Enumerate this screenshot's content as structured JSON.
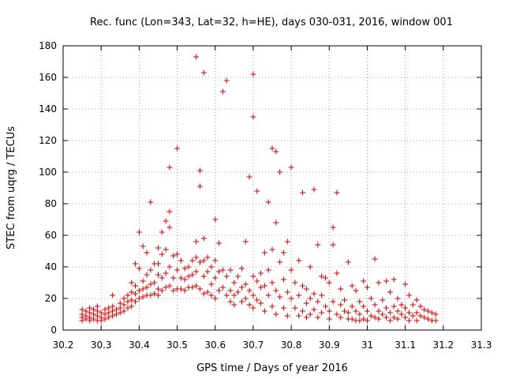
{
  "chart_data": {
    "type": "scatter",
    "title": "Rec. func (Lon=343, Lat=32, h=HE), days 030-031, 2016, window 001",
    "xlabel": "GPS time / Days of year 2016",
    "ylabel": "STEC from uqrg / TECUs",
    "xlim": [
      30.2,
      31.3
    ],
    "ylim": [
      0,
      180
    ],
    "xticks": [
      "30.2",
      "30.3",
      "30.4",
      "30.5",
      "30.6",
      "30.7",
      "30.8",
      "30.9",
      "31",
      "31.1",
      "31.2",
      "31.3"
    ],
    "yticks": [
      "0",
      "20",
      "40",
      "60",
      "80",
      "100",
      "120",
      "140",
      "160",
      "180"
    ],
    "grid": true,
    "marker": "+",
    "color": "#cc0000",
    "series": [
      {
        "name": "STEC",
        "points": [
          [
            30.25,
            13
          ],
          [
            30.25,
            10
          ],
          [
            30.25,
            8
          ],
          [
            30.25,
            6
          ],
          [
            30.26,
            12
          ],
          [
            30.26,
            9
          ],
          [
            30.26,
            7
          ],
          [
            30.27,
            14
          ],
          [
            30.27,
            11
          ],
          [
            30.27,
            8
          ],
          [
            30.27,
            6
          ],
          [
            30.28,
            13
          ],
          [
            30.28,
            10
          ],
          [
            30.28,
            7
          ],
          [
            30.29,
            15
          ],
          [
            30.29,
            12
          ],
          [
            30.29,
            9
          ],
          [
            30.29,
            6
          ],
          [
            30.3,
            11
          ],
          [
            30.3,
            8
          ],
          [
            30.3,
            6
          ],
          [
            30.31,
            13
          ],
          [
            30.31,
            10
          ],
          [
            30.31,
            7
          ],
          [
            30.32,
            14
          ],
          [
            30.32,
            11
          ],
          [
            30.32,
            8
          ],
          [
            30.33,
            22
          ],
          [
            30.33,
            15
          ],
          [
            30.33,
            12
          ],
          [
            30.33,
            9
          ],
          [
            30.34,
            13
          ],
          [
            30.34,
            10
          ],
          [
            30.35,
            17
          ],
          [
            30.35,
            14
          ],
          [
            30.35,
            11
          ],
          [
            30.36,
            20
          ],
          [
            30.36,
            16
          ],
          [
            30.36,
            12
          ],
          [
            30.37,
            22
          ],
          [
            30.37,
            18
          ],
          [
            30.37,
            14
          ],
          [
            30.38,
            30
          ],
          [
            30.38,
            24
          ],
          [
            30.38,
            19
          ],
          [
            30.38,
            15
          ],
          [
            30.39,
            42
          ],
          [
            30.39,
            28
          ],
          [
            30.39,
            23
          ],
          [
            30.39,
            18
          ],
          [
            30.4,
            62
          ],
          [
            30.4,
            39
          ],
          [
            30.4,
            25
          ],
          [
            30.4,
            20
          ],
          [
            30.41,
            53
          ],
          [
            30.41,
            31
          ],
          [
            30.41,
            26
          ],
          [
            30.41,
            21
          ],
          [
            30.42,
            49
          ],
          [
            30.42,
            35
          ],
          [
            30.42,
            27
          ],
          [
            30.42,
            22
          ],
          [
            30.43,
            81
          ],
          [
            30.43,
            38
          ],
          [
            30.43,
            29
          ],
          [
            30.43,
            22
          ],
          [
            30.44,
            42
          ],
          [
            30.44,
            30
          ],
          [
            30.44,
            23
          ],
          [
            30.45,
            52
          ],
          [
            30.45,
            42
          ],
          [
            30.45,
            35
          ],
          [
            30.45,
            26
          ],
          [
            30.45,
            22
          ],
          [
            30.46,
            62
          ],
          [
            30.46,
            48
          ],
          [
            30.46,
            33
          ],
          [
            30.46,
            25
          ],
          [
            30.47,
            69
          ],
          [
            30.47,
            51
          ],
          [
            30.47,
            36
          ],
          [
            30.47,
            27
          ],
          [
            30.48,
            103
          ],
          [
            30.48,
            75
          ],
          [
            30.48,
            65
          ],
          [
            30.48,
            40
          ],
          [
            30.48,
            28
          ],
          [
            30.49,
            47
          ],
          [
            30.49,
            33
          ],
          [
            30.49,
            25
          ],
          [
            30.5,
            115
          ],
          [
            30.5,
            48
          ],
          [
            30.5,
            38
          ],
          [
            30.5,
            26
          ],
          [
            30.51,
            44
          ],
          [
            30.51,
            33
          ],
          [
            30.51,
            26
          ],
          [
            30.52,
            39
          ],
          [
            30.52,
            32
          ],
          [
            30.52,
            25
          ],
          [
            30.53,
            40
          ],
          [
            30.53,
            34
          ],
          [
            30.53,
            27
          ],
          [
            30.54,
            44
          ],
          [
            30.54,
            35
          ],
          [
            30.54,
            27
          ],
          [
            30.55,
            173
          ],
          [
            30.55,
            56
          ],
          [
            30.55,
            46
          ],
          [
            30.55,
            37
          ],
          [
            30.55,
            28
          ],
          [
            30.56,
            101
          ],
          [
            30.56,
            91
          ],
          [
            30.56,
            43
          ],
          [
            30.56,
            26
          ],
          [
            30.57,
            163
          ],
          [
            30.57,
            58
          ],
          [
            30.57,
            44
          ],
          [
            30.57,
            34
          ],
          [
            30.57,
            23
          ],
          [
            30.58,
            46
          ],
          [
            30.58,
            37
          ],
          [
            30.58,
            24
          ],
          [
            30.59,
            40
          ],
          [
            30.59,
            29
          ],
          [
            30.59,
            22
          ],
          [
            30.6,
            70
          ],
          [
            30.6,
            44
          ],
          [
            30.6,
            33
          ],
          [
            30.6,
            20
          ],
          [
            30.61,
            55
          ],
          [
            30.61,
            37
          ],
          [
            30.61,
            25
          ],
          [
            30.62,
            151
          ],
          [
            30.62,
            38
          ],
          [
            30.62,
            27
          ],
          [
            30.63,
            158
          ],
          [
            30.63,
            34
          ],
          [
            30.63,
            22
          ],
          [
            30.64,
            38
          ],
          [
            30.64,
            25
          ],
          [
            30.64,
            18
          ],
          [
            30.65,
            30
          ],
          [
            30.65,
            22
          ],
          [
            30.65,
            16
          ],
          [
            30.66,
            34
          ],
          [
            30.66,
            24
          ],
          [
            30.67,
            39
          ],
          [
            30.67,
            27
          ],
          [
            30.67,
            18
          ],
          [
            30.68,
            56
          ],
          [
            30.68,
            29
          ],
          [
            30.68,
            20
          ],
          [
            30.69,
            97
          ],
          [
            30.69,
            25
          ],
          [
            30.69,
            16
          ],
          [
            30.7,
            162
          ],
          [
            30.7,
            135
          ],
          [
            30.7,
            34
          ],
          [
            30.7,
            22
          ],
          [
            30.7,
            14
          ],
          [
            30.71,
            88
          ],
          [
            30.71,
            31
          ],
          [
            30.71,
            19
          ],
          [
            30.72,
            36
          ],
          [
            30.72,
            27
          ],
          [
            30.72,
            17
          ],
          [
            30.73,
            49
          ],
          [
            30.73,
            28
          ],
          [
            30.73,
            12
          ],
          [
            30.74,
            81
          ],
          [
            30.74,
            38
          ],
          [
            30.74,
            22
          ],
          [
            30.75,
            115
          ],
          [
            30.75,
            51
          ],
          [
            30.75,
            30
          ],
          [
            30.75,
            15
          ],
          [
            30.76,
            113
          ],
          [
            30.76,
            68
          ],
          [
            30.76,
            25
          ],
          [
            30.76,
            10
          ],
          [
            30.77,
            100
          ],
          [
            30.77,
            43
          ],
          [
            30.77,
            21
          ],
          [
            30.78,
            49
          ],
          [
            30.78,
            32
          ],
          [
            30.78,
            14
          ],
          [
            30.79,
            56
          ],
          [
            30.79,
            24
          ],
          [
            30.79,
            9
          ],
          [
            30.8,
            103
          ],
          [
            30.8,
            38
          ],
          [
            30.8,
            20
          ],
          [
            30.81,
            30
          ],
          [
            30.81,
            14
          ],
          [
            30.82,
            44
          ],
          [
            30.82,
            22
          ],
          [
            30.82,
            9
          ],
          [
            30.83,
            87
          ],
          [
            30.83,
            28
          ],
          [
            30.83,
            12
          ],
          [
            30.84,
            26
          ],
          [
            30.84,
            17
          ],
          [
            30.84,
            8
          ],
          [
            30.85,
            40
          ],
          [
            30.85,
            20
          ],
          [
            30.85,
            10
          ],
          [
            30.86,
            89
          ],
          [
            30.86,
            23
          ],
          [
            30.86,
            13
          ],
          [
            30.87,
            54
          ],
          [
            30.87,
            18
          ],
          [
            30.87,
            8
          ],
          [
            30.88,
            34
          ],
          [
            30.88,
            22
          ],
          [
            30.88,
            11
          ],
          [
            30.89,
            33
          ],
          [
            30.89,
            15
          ],
          [
            30.9,
            30
          ],
          [
            30.9,
            12
          ],
          [
            30.9,
            7
          ],
          [
            30.91,
            65
          ],
          [
            30.91,
            54
          ],
          [
            30.91,
            18
          ],
          [
            30.92,
            87
          ],
          [
            30.92,
            36
          ],
          [
            30.92,
            10
          ],
          [
            30.93,
            26
          ],
          [
            30.93,
            16
          ],
          [
            30.93,
            8
          ],
          [
            30.94,
            19
          ],
          [
            30.94,
            12
          ],
          [
            30.95,
            43
          ],
          [
            30.95,
            11
          ],
          [
            30.95,
            7
          ],
          [
            30.96,
            28
          ],
          [
            30.96,
            15
          ],
          [
            30.96,
            7
          ],
          [
            30.97,
            25
          ],
          [
            30.97,
            12
          ],
          [
            30.97,
            6
          ],
          [
            30.98,
            18
          ],
          [
            30.98,
            10
          ],
          [
            30.98,
            6
          ],
          [
            30.99,
            31
          ],
          [
            30.99,
            15
          ],
          [
            30.99,
            7
          ],
          [
            31,
            27
          ],
          [
            31,
            12
          ],
          [
            31,
            6
          ],
          [
            31.01,
            20
          ],
          [
            31.01,
            9
          ],
          [
            31.02,
            45
          ],
          [
            31.02,
            16
          ],
          [
            31.02,
            8
          ],
          [
            31.03,
            30
          ],
          [
            31.03,
            12
          ],
          [
            31.03,
            7
          ],
          [
            31.04,
            19
          ],
          [
            31.04,
            10
          ],
          [
            31.05,
            31
          ],
          [
            31.05,
            14
          ],
          [
            31.05,
            8
          ],
          [
            31.06,
            24
          ],
          [
            31.06,
            11
          ],
          [
            31.06,
            6
          ],
          [
            31.07,
            32
          ],
          [
            31.07,
            15
          ],
          [
            31.07,
            8
          ],
          [
            31.08,
            20
          ],
          [
            31.08,
            12
          ],
          [
            31.08,
            7
          ],
          [
            31.09,
            16
          ],
          [
            31.09,
            10
          ],
          [
            31.1,
            29
          ],
          [
            31.1,
            14
          ],
          [
            31.1,
            8
          ],
          [
            31.11,
            22
          ],
          [
            31.11,
            11
          ],
          [
            31.11,
            6
          ],
          [
            31.12,
            16
          ],
          [
            31.12,
            9
          ],
          [
            31.13,
            19
          ],
          [
            31.13,
            11
          ],
          [
            31.13,
            6
          ],
          [
            31.14,
            15
          ],
          [
            31.14,
            9
          ],
          [
            31.15,
            13
          ],
          [
            31.15,
            8
          ],
          [
            31.16,
            12
          ],
          [
            31.16,
            7
          ],
          [
            31.17,
            11
          ],
          [
            31.17,
            6
          ],
          [
            31.18,
            10
          ],
          [
            31.18,
            6
          ]
        ]
      }
    ]
  }
}
